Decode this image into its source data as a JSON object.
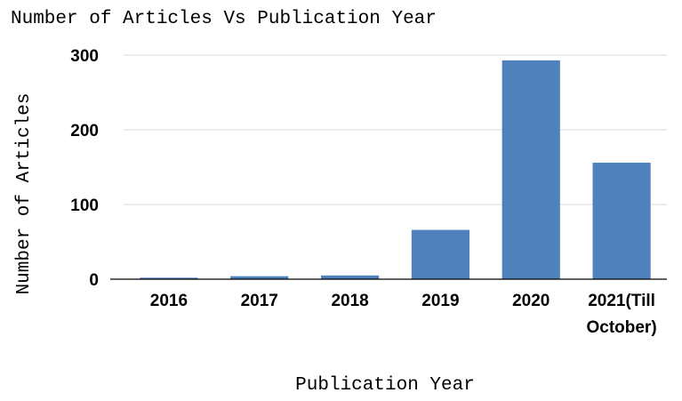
{
  "chart_data": {
    "type": "bar",
    "title": "Number of Articles Vs Publication Year",
    "xlabel": "Publication Year",
    "ylabel": "Number of Articles",
    "categories": [
      "2016",
      "2017",
      "2018",
      "2019",
      "2020",
      "2021(Till October)"
    ],
    "category_lines": [
      [
        "2016"
      ],
      [
        "2017"
      ],
      [
        "2018"
      ],
      [
        "2019"
      ],
      [
        "2020"
      ],
      [
        "2021(Till",
        "October)"
      ]
    ],
    "values": [
      2,
      4,
      5,
      66,
      293,
      156
    ],
    "ylim": [
      0,
      300
    ],
    "yticks": [
      0,
      100,
      200,
      300
    ],
    "grid": true,
    "legend": "none",
    "bar_color": "#4f81bd"
  }
}
